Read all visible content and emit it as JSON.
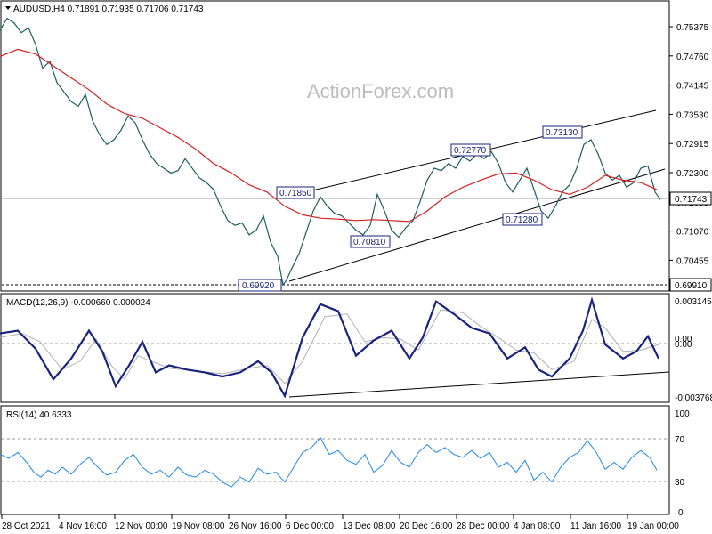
{
  "chart_data": {
    "type": "candlestick",
    "watermark": "ActionForex.com",
    "panels": {
      "price": {
        "header": "AUDUSD,H4  0.71891 0.71935 0.71706 0.71743",
        "yticks": [
          "0.75375",
          "0.74760",
          "0.74145",
          "0.73530",
          "0.72915",
          "0.72300",
          "0.71685",
          "0.71070",
          "0.70455",
          "0.69910"
        ],
        "ylim": [
          0.6985,
          0.758
        ],
        "current_price": "0.71743",
        "support_level": "0.69910",
        "annotations": [
          "0.69920",
          "0.71850",
          "0.70810",
          "0.72770",
          "0.71280",
          "0.73130"
        ],
        "moving_average": "red line"
      },
      "macd": {
        "header": "MACD(12,26,9) -0.000660 0.000024",
        "yticks": [
          "0.003145",
          "0.00",
          "0.00",
          "-0.003768"
        ]
      },
      "rsi": {
        "header": "RSI(14) 40.6333",
        "yticks": [
          "100",
          "70",
          "30",
          "0"
        ]
      }
    },
    "xticks": [
      "28 Oct 2021",
      "4 Nov 16:00",
      "12 Nov 00:00",
      "19 Nov 08:00",
      "26 Nov 16:00",
      "6 Dec 00:00",
      "13 Dec 08:00",
      "20 Dec 16:00",
      "28 Dec 00:00",
      "4 Jan 08:00",
      "11 Jan 16:00",
      "19 Jan 00:00"
    ],
    "price_path": [
      [
        0,
        0.753
      ],
      [
        8,
        0.7555
      ],
      [
        16,
        0.7545
      ],
      [
        24,
        0.7525
      ],
      [
        32,
        0.7535
      ],
      [
        40,
        0.75
      ],
      [
        48,
        0.745
      ],
      [
        56,
        0.7465
      ],
      [
        64,
        0.742
      ],
      [
        72,
        0.74
      ],
      [
        80,
        0.738
      ],
      [
        88,
        0.737
      ],
      [
        96,
        0.7395
      ],
      [
        104,
        0.734
      ],
      [
        112,
        0.731
      ],
      [
        120,
        0.729
      ],
      [
        128,
        0.73
      ],
      [
        136,
        0.732
      ],
      [
        144,
        0.735
      ],
      [
        152,
        0.7335
      ],
      [
        160,
        0.73
      ],
      [
        168,
        0.727
      ],
      [
        176,
        0.725
      ],
      [
        184,
        0.724
      ],
      [
        192,
        0.723
      ],
      [
        200,
        0.7235
      ],
      [
        208,
        0.726
      ],
      [
        216,
        0.724
      ],
      [
        224,
        0.722
      ],
      [
        232,
        0.721
      ],
      [
        240,
        0.7195
      ],
      [
        248,
        0.716
      ],
      [
        256,
        0.713
      ],
      [
        264,
        0.712
      ],
      [
        272,
        0.7125
      ],
      [
        280,
        0.71
      ],
      [
        288,
        0.711
      ],
      [
        296,
        0.714
      ],
      [
        304,
        0.7085
      ],
      [
        312,
        0.7055
      ],
      [
        318,
        0.6995
      ],
      [
        322,
        0.7005
      ],
      [
        328,
        0.703
      ],
      [
        336,
        0.706
      ],
      [
        344,
        0.7105
      ],
      [
        352,
        0.715
      ],
      [
        360,
        0.718
      ],
      [
        368,
        0.716
      ],
      [
        376,
        0.7145
      ],
      [
        384,
        0.714
      ],
      [
        392,
        0.7125
      ],
      [
        400,
        0.711
      ],
      [
        408,
        0.71
      ],
      [
        416,
        0.712
      ],
      [
        424,
        0.7185
      ],
      [
        432,
        0.715
      ],
      [
        440,
        0.711
      ],
      [
        448,
        0.7095
      ],
      [
        456,
        0.7115
      ],
      [
        464,
        0.713
      ],
      [
        472,
        0.717
      ],
      [
        480,
        0.7215
      ],
      [
        488,
        0.724
      ],
      [
        496,
        0.7235
      ],
      [
        504,
        0.725
      ],
      [
        512,
        0.724
      ],
      [
        520,
        0.7265
      ],
      [
        528,
        0.7255
      ],
      [
        536,
        0.727
      ],
      [
        544,
        0.726
      ],
      [
        552,
        0.7275
      ],
      [
        560,
        0.725
      ],
      [
        568,
        0.721
      ],
      [
        576,
        0.719
      ],
      [
        584,
        0.7215
      ],
      [
        592,
        0.724
      ],
      [
        600,
        0.7195
      ],
      [
        608,
        0.715
      ],
      [
        616,
        0.7135
      ],
      [
        624,
        0.716
      ],
      [
        632,
        0.719
      ],
      [
        640,
        0.7205
      ],
      [
        648,
        0.724
      ],
      [
        656,
        0.729
      ],
      [
        664,
        0.73
      ],
      [
        672,
        0.727
      ],
      [
        680,
        0.723
      ],
      [
        688,
        0.7215
      ],
      [
        696,
        0.7225
      ],
      [
        704,
        0.72
      ],
      [
        712,
        0.721
      ],
      [
        720,
        0.724
      ],
      [
        728,
        0.7245
      ],
      [
        736,
        0.719
      ],
      [
        742,
        0.7174
      ]
    ],
    "ma_path": [
      [
        0,
        0.7475
      ],
      [
        20,
        0.749
      ],
      [
        40,
        0.748
      ],
      [
        60,
        0.7455
      ],
      [
        80,
        0.743
      ],
      [
        100,
        0.7405
      ],
      [
        120,
        0.7375
      ],
      [
        140,
        0.7355
      ],
      [
        160,
        0.7345
      ],
      [
        180,
        0.7325
      ],
      [
        200,
        0.7305
      ],
      [
        220,
        0.728
      ],
      [
        240,
        0.725
      ],
      [
        260,
        0.723
      ],
      [
        280,
        0.7205
      ],
      [
        300,
        0.719
      ],
      [
        320,
        0.716
      ],
      [
        340,
        0.7142
      ],
      [
        360,
        0.7135
      ],
      [
        380,
        0.7133
      ],
      [
        400,
        0.713
      ],
      [
        420,
        0.7132
      ],
      [
        440,
        0.713
      ],
      [
        460,
        0.7128
      ],
      [
        480,
        0.715
      ],
      [
        500,
        0.718
      ],
      [
        520,
        0.72
      ],
      [
        540,
        0.7215
      ],
      [
        560,
        0.7228
      ],
      [
        580,
        0.723
      ],
      [
        600,
        0.7215
      ],
      [
        620,
        0.7195
      ],
      [
        640,
        0.7185
      ],
      [
        660,
        0.72
      ],
      [
        680,
        0.7225
      ],
      [
        700,
        0.7215
      ],
      [
        720,
        0.721
      ],
      [
        738,
        0.7195
      ]
    ],
    "macd_path": [
      [
        0,
        0.0008
      ],
      [
        20,
        0.001
      ],
      [
        40,
        -0.0003
      ],
      [
        60,
        -0.0025
      ],
      [
        80,
        -0.001
      ],
      [
        100,
        0.001
      ],
      [
        115,
        -0.0005
      ],
      [
        130,
        -0.003
      ],
      [
        145,
        -0.0015
      ],
      [
        160,
        0.0002
      ],
      [
        175,
        -0.002
      ],
      [
        190,
        -0.0015
      ],
      [
        210,
        -0.0018
      ],
      [
        230,
        -0.002
      ],
      [
        250,
        -0.0023
      ],
      [
        270,
        -0.002
      ],
      [
        290,
        -0.0012
      ],
      [
        305,
        -0.002
      ],
      [
        320,
        -0.0037
      ],
      [
        340,
        0.0005
      ],
      [
        360,
        0.0029
      ],
      [
        380,
        0.0024
      ],
      [
        400,
        -0.0008
      ],
      [
        420,
        0.0003
      ],
      [
        440,
        0.001
      ],
      [
        460,
        -0.001
      ],
      [
        475,
        0.0005
      ],
      [
        490,
        0.0031
      ],
      [
        510,
        0.0022
      ],
      [
        530,
        0.0012
      ],
      [
        550,
        0.0008
      ],
      [
        570,
        -0.001
      ],
      [
        590,
        -0.0002
      ],
      [
        605,
        -0.0018
      ],
      [
        620,
        -0.0023
      ],
      [
        640,
        -0.001
      ],
      [
        655,
        0.001
      ],
      [
        665,
        0.0032
      ],
      [
        680,
        0.0
      ],
      [
        700,
        -0.001
      ],
      [
        715,
        -0.0005
      ],
      [
        728,
        0.0006
      ],
      [
        740,
        -0.001
      ]
    ],
    "signal_path": [
      [
        0,
        0.0005
      ],
      [
        25,
        0.0008
      ],
      [
        45,
        0.0002
      ],
      [
        70,
        -0.0018
      ],
      [
        90,
        -0.0012
      ],
      [
        108,
        0.0004
      ],
      [
        125,
        -0.0015
      ],
      [
        140,
        -0.0025
      ],
      [
        155,
        -0.0008
      ],
      [
        170,
        -0.0012
      ],
      [
        190,
        -0.0017
      ],
      [
        220,
        -0.0019
      ],
      [
        250,
        -0.0021
      ],
      [
        280,
        -0.0017
      ],
      [
        300,
        -0.0015
      ],
      [
        320,
        -0.0028
      ],
      [
        340,
        -0.0012
      ],
      [
        365,
        0.002
      ],
      [
        390,
        0.0022
      ],
      [
        410,
        0.0002
      ],
      [
        430,
        0.0005
      ],
      [
        450,
        0.0004
      ],
      [
        470,
        -0.0004
      ],
      [
        495,
        0.0025
      ],
      [
        520,
        0.0023
      ],
      [
        540,
        0.0013
      ],
      [
        560,
        0.0005
      ],
      [
        580,
        -0.0004
      ],
      [
        600,
        -0.0006
      ],
      [
        620,
        -0.0018
      ],
      [
        645,
        -0.0012
      ],
      [
        665,
        0.0018
      ],
      [
        680,
        0.0012
      ],
      [
        700,
        -0.0005
      ],
      [
        720,
        -0.0004
      ],
      [
        740,
        0.0
      ]
    ],
    "rsi_path": [
      [
        0,
        58
      ],
      [
        10,
        54
      ],
      [
        20,
        60
      ],
      [
        30,
        50
      ],
      [
        38,
        40
      ],
      [
        46,
        35
      ],
      [
        54,
        42
      ],
      [
        62,
        38
      ],
      [
        70,
        45
      ],
      [
        80,
        38
      ],
      [
        90,
        48
      ],
      [
        100,
        55
      ],
      [
        110,
        45
      ],
      [
        120,
        37
      ],
      [
        130,
        40
      ],
      [
        140,
        52
      ],
      [
        150,
        58
      ],
      [
        160,
        45
      ],
      [
        170,
        38
      ],
      [
        180,
        42
      ],
      [
        190,
        35
      ],
      [
        200,
        45
      ],
      [
        210,
        37
      ],
      [
        220,
        35
      ],
      [
        230,
        42
      ],
      [
        240,
        38
      ],
      [
        250,
        30
      ],
      [
        260,
        25
      ],
      [
        270,
        35
      ],
      [
        280,
        30
      ],
      [
        290,
        44
      ],
      [
        300,
        38
      ],
      [
        310,
        40
      ],
      [
        320,
        30
      ],
      [
        330,
        45
      ],
      [
        340,
        60
      ],
      [
        350,
        65
      ],
      [
        360,
        75
      ],
      [
        370,
        58
      ],
      [
        380,
        62
      ],
      [
        390,
        52
      ],
      [
        400,
        48
      ],
      [
        410,
        58
      ],
      [
        420,
        40
      ],
      [
        430,
        47
      ],
      [
        440,
        62
      ],
      [
        450,
        50
      ],
      [
        460,
        45
      ],
      [
        470,
        60
      ],
      [
        480,
        68
      ],
      [
        490,
        60
      ],
      [
        500,
        65
      ],
      [
        510,
        58
      ],
      [
        520,
        55
      ],
      [
        530,
        62
      ],
      [
        540,
        54
      ],
      [
        550,
        60
      ],
      [
        560,
        45
      ],
      [
        570,
        50
      ],
      [
        580,
        40
      ],
      [
        590,
        52
      ],
      [
        600,
        32
      ],
      [
        610,
        40
      ],
      [
        620,
        30
      ],
      [
        630,
        45
      ],
      [
        640,
        55
      ],
      [
        650,
        60
      ],
      [
        660,
        72
      ],
      [
        670,
        60
      ],
      [
        680,
        43
      ],
      [
        690,
        50
      ],
      [
        700,
        43
      ],
      [
        710,
        55
      ],
      [
        720,
        62
      ],
      [
        730,
        55
      ],
      [
        738,
        42
      ]
    ]
  }
}
